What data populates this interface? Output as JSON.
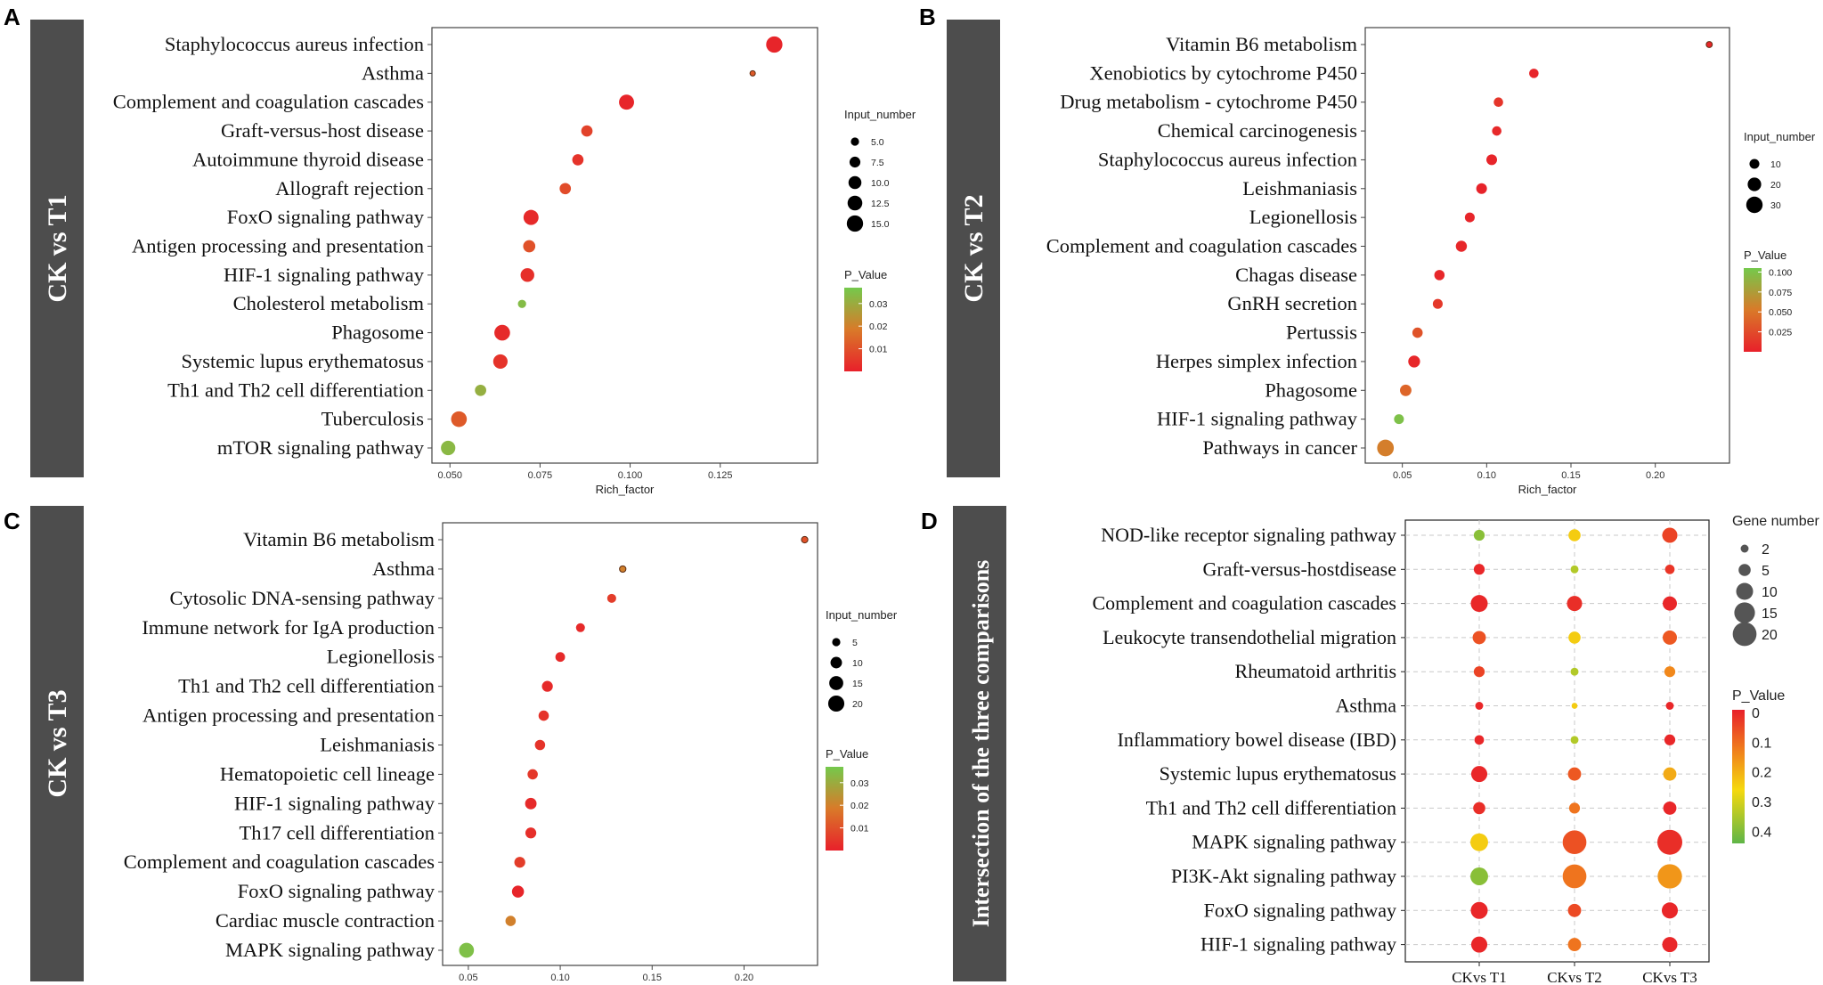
{
  "chart_data": [
    {
      "panel": "A",
      "side_label": "CK vs T1",
      "type": "scatter",
      "xlabel": "Rich_factor",
      "xlim": [
        0.045,
        0.152
      ],
      "xticks": [
        0.05,
        0.075,
        0.1,
        0.125
      ],
      "xtick_labels": [
        "0.050",
        "0.075",
        "0.100",
        "0.125"
      ],
      "size_legend_title": "Input_number",
      "size_domain": [
        3,
        16
      ],
      "size_legend": [
        {
          "label": "5.0",
          "v": 5
        },
        {
          "label": "7.5",
          "v": 7.5
        },
        {
          "label": "10.0",
          "v": 10
        },
        {
          "label": "12.5",
          "v": 12.5
        },
        {
          "label": "15.0",
          "v": 15
        }
      ],
      "color_legend_title": "P_Value",
      "color_domain": [
        0,
        0.037
      ],
      "color_ticks": [
        {
          "label": "0.03",
          "v": 0.03
        },
        {
          "label": "0.02",
          "v": 0.02
        },
        {
          "label": "0.01",
          "v": 0.01
        }
      ],
      "points": [
        {
          "name": "Staphylococcus aureus infection",
          "x": 0.14,
          "size": 15,
          "p": 0.001
        },
        {
          "name": "Asthma",
          "x": 0.134,
          "size": 3,
          "p": 0.012
        },
        {
          "name": "Complement and coagulation cascades",
          "x": 0.099,
          "size": 13,
          "p": 0.001
        },
        {
          "name": "Graft-versus-host disease",
          "x": 0.088,
          "size": 8,
          "p": 0.007
        },
        {
          "name": "Autoimmune thyroid disease",
          "x": 0.0855,
          "size": 8,
          "p": 0.004
        },
        {
          "name": "Allograft rejection",
          "x": 0.082,
          "size": 8,
          "p": 0.009
        },
        {
          "name": "FoxO signaling pathway",
          "x": 0.0725,
          "size": 13,
          "p": 0.002
        },
        {
          "name": "Antigen processing and presentation",
          "x": 0.072,
          "size": 9,
          "p": 0.01
        },
        {
          "name": "HIF-1 signaling pathway",
          "x": 0.0715,
          "size": 11,
          "p": 0.003
        },
        {
          "name": "Cholesterol metabolism",
          "x": 0.07,
          "size": 5,
          "p": 0.034
        },
        {
          "name": "Phagosome",
          "x": 0.0645,
          "size": 14,
          "p": 0.002
        },
        {
          "name": "Systemic lupus erythematosus",
          "x": 0.064,
          "size": 12,
          "p": 0.004
        },
        {
          "name": "Th1 and Th2 cell differentiation",
          "x": 0.0585,
          "size": 8,
          "p": 0.031
        },
        {
          "name": "Tuberculosis",
          "x": 0.0525,
          "size": 14,
          "p": 0.012
        },
        {
          "name": "mTOR signaling pathway",
          "x": 0.0495,
          "size": 12,
          "p": 0.033
        }
      ]
    },
    {
      "panel": "B",
      "side_label": "CK vs T2",
      "type": "scatter",
      "xlabel": "Rich_factor",
      "xlim": [
        0.028,
        0.244
      ],
      "xticks": [
        0.05,
        0.1,
        0.15,
        0.2
      ],
      "xtick_labels": [
        "0.05",
        "0.10",
        "0.15",
        "0.20"
      ],
      "size_legend_title": "Input_number",
      "size_domain": [
        2,
        32
      ],
      "size_legend": [
        {
          "label": "10",
          "v": 10
        },
        {
          "label": "20",
          "v": 20
        },
        {
          "label": "30",
          "v": 30
        }
      ],
      "color_legend_title": "P_Value",
      "color_domain": [
        0,
        0.105
      ],
      "color_ticks": [
        {
          "label": "0.100",
          "v": 0.1
        },
        {
          "label": "0.075",
          "v": 0.075
        },
        {
          "label": "0.050",
          "v": 0.05
        },
        {
          "label": "0.025",
          "v": 0.025
        }
      ],
      "points": [
        {
          "name": "Vitamin B6 metabolism",
          "x": 0.232,
          "size": 3,
          "p": 0.004
        },
        {
          "name": "Xenobiotics by cytochrome P450",
          "x": 0.128,
          "size": 9,
          "p": 0.003
        },
        {
          "name": "Drug metabolism - cytochrome P450",
          "x": 0.107,
          "size": 9,
          "p": 0.012
        },
        {
          "name": "Chemical carcinogenesis",
          "x": 0.106,
          "size": 9,
          "p": 0.005
        },
        {
          "name": "Staphylococcus aureus infection",
          "x": 0.103,
          "size": 12,
          "p": 0.003
        },
        {
          "name": "Leishmaniasis",
          "x": 0.097,
          "size": 12,
          "p": 0.002
        },
        {
          "name": "Legionellosis",
          "x": 0.09,
          "size": 10,
          "p": 0.003
        },
        {
          "name": "Complement and coagulation cascades",
          "x": 0.085,
          "size": 13,
          "p": 0.004
        },
        {
          "name": "Chagas disease",
          "x": 0.072,
          "size": 11,
          "p": 0.004
        },
        {
          "name": "GnRH secretion",
          "x": 0.071,
          "size": 10,
          "p": 0.014
        },
        {
          "name": "Pertussis",
          "x": 0.059,
          "size": 11,
          "p": 0.03
        },
        {
          "name": "Herpes simplex infection",
          "x": 0.057,
          "size": 15,
          "p": 0.004
        },
        {
          "name": "Phagosome",
          "x": 0.052,
          "size": 14,
          "p": 0.04
        },
        {
          "name": "HIF-1 signaling pathway",
          "x": 0.048,
          "size": 10,
          "p": 0.1
        },
        {
          "name": "Pathways in cancer",
          "x": 0.04,
          "size": 31,
          "p": 0.055
        }
      ]
    },
    {
      "panel": "C",
      "side_label": "CK vs T3",
      "type": "scatter",
      "xlabel": "Rich_factor",
      "xlim": [
        0.036,
        0.24
      ],
      "xticks": [
        0.05,
        0.1,
        0.15,
        0.2
      ],
      "xtick_labels": [
        "0.05",
        "0.10",
        "0.15",
        "0.20"
      ],
      "size_legend_title": "Input_number",
      "size_domain": [
        2,
        22
      ],
      "size_legend": [
        {
          "label": "5",
          "v": 5
        },
        {
          "label": "10",
          "v": 10
        },
        {
          "label": "15",
          "v": 15
        },
        {
          "label": "20",
          "v": 20
        }
      ],
      "color_legend_title": "P_Value",
      "color_domain": [
        0,
        0.037
      ],
      "color_ticks": [
        {
          "label": "0.03",
          "v": 0.03
        },
        {
          "label": "0.02",
          "v": 0.02
        },
        {
          "label": "0.01",
          "v": 0.01
        }
      ],
      "points": [
        {
          "name": "Vitamin B6 metabolism",
          "x": 0.233,
          "size": 3,
          "p": 0.01
        },
        {
          "name": "Asthma",
          "x": 0.134,
          "size": 3,
          "p": 0.02
        },
        {
          "name": "Cytosolic DNA-sensing pathway",
          "x": 0.128,
          "size": 6,
          "p": 0.006
        },
        {
          "name": "Immune network for IgA production",
          "x": 0.111,
          "size": 6,
          "p": 0.002
        },
        {
          "name": "Legionellosis",
          "x": 0.1,
          "size": 7,
          "p": 0.002
        },
        {
          "name": "Th1 and Th2 cell differentiation",
          "x": 0.093,
          "size": 9,
          "p": 0.002
        },
        {
          "name": "Antigen processing and presentation",
          "x": 0.091,
          "size": 8,
          "p": 0.004
        },
        {
          "name": "Leishmaniasis",
          "x": 0.089,
          "size": 8,
          "p": 0.004
        },
        {
          "name": "Hematopoietic cell lineage",
          "x": 0.085,
          "size": 8,
          "p": 0.005
        },
        {
          "name": "HIF-1 signaling pathway",
          "x": 0.084,
          "size": 10,
          "p": 0.002
        },
        {
          "name": "Th17 cell differentiation",
          "x": 0.084,
          "size": 9,
          "p": 0.003
        },
        {
          "name": "Complement and coagulation cascades",
          "x": 0.078,
          "size": 9,
          "p": 0.006
        },
        {
          "name": "FoxO signaling pathway",
          "x": 0.077,
          "size": 11,
          "p": 0.001
        },
        {
          "name": "Cardiac muscle contraction",
          "x": 0.073,
          "size": 8,
          "p": 0.02
        },
        {
          "name": "MAPK signaling pathway",
          "x": 0.049,
          "size": 17,
          "p": 0.035
        }
      ]
    },
    {
      "panel": "D",
      "side_label": "Intersection of the three comparisons",
      "type": "scatter",
      "categories_x": [
        "CKvs T1",
        "CKvs T2",
        "CKvs T3"
      ],
      "size_legend_title": "Gene number",
      "size_domain": [
        0,
        22
      ],
      "size_legend": [
        {
          "label": "2",
          "v": 2
        },
        {
          "label": "5",
          "v": 5
        },
        {
          "label": "10",
          "v": 10
        },
        {
          "label": "15",
          "v": 15
        },
        {
          "label": "20",
          "v": 20
        }
      ],
      "color_legend_title": "P_Value",
      "color_domain": [
        0,
        0.45
      ],
      "color_ticks": [
        {
          "label": "0",
          "v": 0
        },
        {
          "label": "0.1",
          "v": 0.1
        },
        {
          "label": "0.2",
          "v": 0.2
        },
        {
          "label": "0.3",
          "v": 0.3
        },
        {
          "label": "0.4",
          "v": 0.4
        }
      ],
      "rows": [
        {
          "name": "NOD-like receptor signaling pathway",
          "size": [
            4,
            5,
            8
          ],
          "p": [
            0.4,
            0.25,
            0.05
          ]
        },
        {
          "name": "Graft-versus-hostdisease",
          "size": [
            4,
            2,
            3
          ],
          "p": [
            0.01,
            0.35,
            0.03
          ]
        },
        {
          "name": "Complement and coagulation cascades",
          "size": [
            10,
            8,
            7
          ],
          "p": [
            0.01,
            0.02,
            0.01
          ]
        },
        {
          "name": "Leukocyte transendothelial migration",
          "size": [
            6,
            5,
            7
          ],
          "p": [
            0.07,
            0.25,
            0.08
          ]
        },
        {
          "name": "Rheumatoid arthritis",
          "size": [
            4,
            2,
            4
          ],
          "p": [
            0.05,
            0.35,
            0.15
          ]
        },
        {
          "name": "Asthma",
          "size": [
            2,
            1,
            2
          ],
          "p": [
            0.01,
            0.25,
            0.01
          ]
        },
        {
          "name": "Inflammatiory bowel disease (IBD)",
          "size": [
            3,
            2,
            4
          ],
          "p": [
            0.01,
            0.35,
            0.01
          ]
        },
        {
          "name": "Systemic lupus erythematosus",
          "size": [
            9,
            6,
            6
          ],
          "p": [
            0.01,
            0.08,
            0.2
          ]
        },
        {
          "name": "Th1 and Th2 cell differentiation",
          "size": [
            5,
            4,
            6
          ],
          "p": [
            0.02,
            0.12,
            0.01
          ]
        },
        {
          "name": "MAPK signaling pathway",
          "size": [
            11,
            20,
            22
          ],
          "p": [
            0.25,
            0.07,
            0.02
          ]
        },
        {
          "name": "PI3K-Akt signaling pathway",
          "size": [
            11,
            20,
            21
          ],
          "p": [
            0.4,
            0.12,
            0.17
          ]
        },
        {
          "name": "FoxO signaling pathway",
          "size": [
            10,
            6,
            9
          ],
          "p": [
            0.01,
            0.06,
            0.01
          ]
        },
        {
          "name": "HIF-1 signaling pathway",
          "size": [
            9,
            6,
            8
          ],
          "p": [
            0.01,
            0.12,
            0.01
          ]
        }
      ]
    }
  ]
}
